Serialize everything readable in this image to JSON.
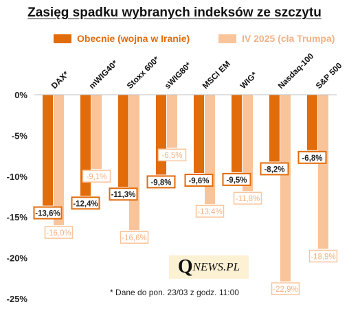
{
  "title": "Zasięg spadku wybranych indeksów ze szczytu",
  "legend": [
    {
      "label": "Obecnie (wojna w Iranie)",
      "color": "#e26b0a"
    },
    {
      "label": "IV 2025 (cła Trumpa)",
      "color": "#f9c49a"
    }
  ],
  "colors": {
    "now": "#e26b0a",
    "now_label": "#c0560a",
    "past": "#f9c49a",
    "past_label": "#f4b183"
  },
  "chart_data": {
    "type": "bar",
    "categories": [
      "DAX*",
      "mWIG40*",
      "Stoxx 600*",
      "sWIG80*",
      "MSCI EM",
      "WIG*",
      "Nasdaq-100",
      "S&P 500"
    ],
    "series": [
      {
        "name": "Obecnie (wojna w Iranie)",
        "values": [
          -13.6,
          -12.4,
          -11.3,
          -9.8,
          -9.6,
          -9.5,
          -8.2,
          -6.8
        ],
        "labels": [
          "-13,6%",
          "-12,4%",
          "-11,3%",
          "-9,8%",
          "-9,6%",
          "-9,5%",
          "-8,2%",
          "-6,8%"
        ]
      },
      {
        "name": "IV 2025 (cła Trumpa)",
        "values": [
          -16.0,
          -9.1,
          -16.6,
          -6.5,
          -13.4,
          -11.8,
          -22.9,
          -18.9
        ],
        "labels": [
          "-16,0%",
          "-9,1%",
          "-16,6%",
          "-6,5%",
          "-13,4%",
          "-11,8%",
          "-22,9%",
          "-18,9%"
        ]
      }
    ],
    "y_ticks": [
      0,
      -5,
      -10,
      -15,
      -20,
      -25
    ],
    "y_tick_labels": [
      "0%",
      "-5%",
      "-10%",
      "-15%",
      "-20%",
      "-25%"
    ],
    "ylim": [
      -25,
      0
    ],
    "grid": false,
    "legend_position": "top"
  },
  "logo": {
    "q": "Q",
    "rest": "NEWS.PL"
  },
  "footnote": "* Dane do pon. 23/03 z godz. 11:00"
}
